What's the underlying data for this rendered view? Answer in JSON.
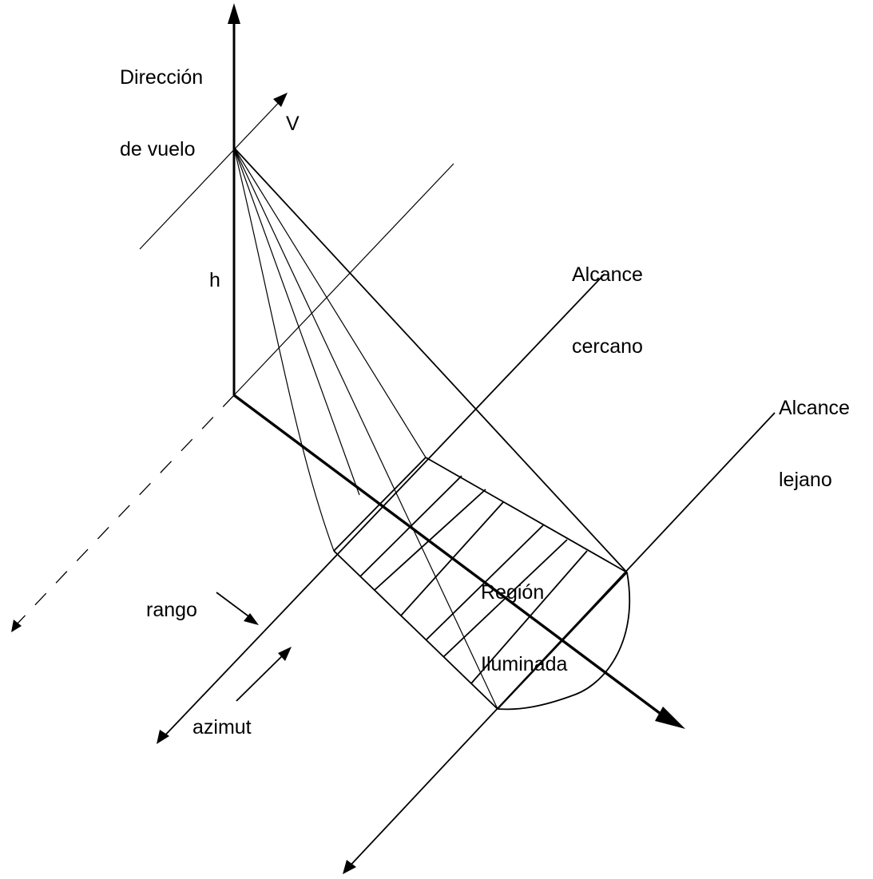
{
  "labels": {
    "flight_direction": [
      "Dirección",
      "de vuelo"
    ],
    "velocity": "V",
    "height": "h",
    "near_range": [
      "Alcance",
      "cercano"
    ],
    "far_range": [
      "Alcance",
      "lejano"
    ],
    "illuminated_region": [
      "Región",
      "Iluminada"
    ],
    "azimuth": "azimut",
    "range": "rango"
  },
  "colors": {
    "stroke": "#000000",
    "background": "#ffffff"
  }
}
